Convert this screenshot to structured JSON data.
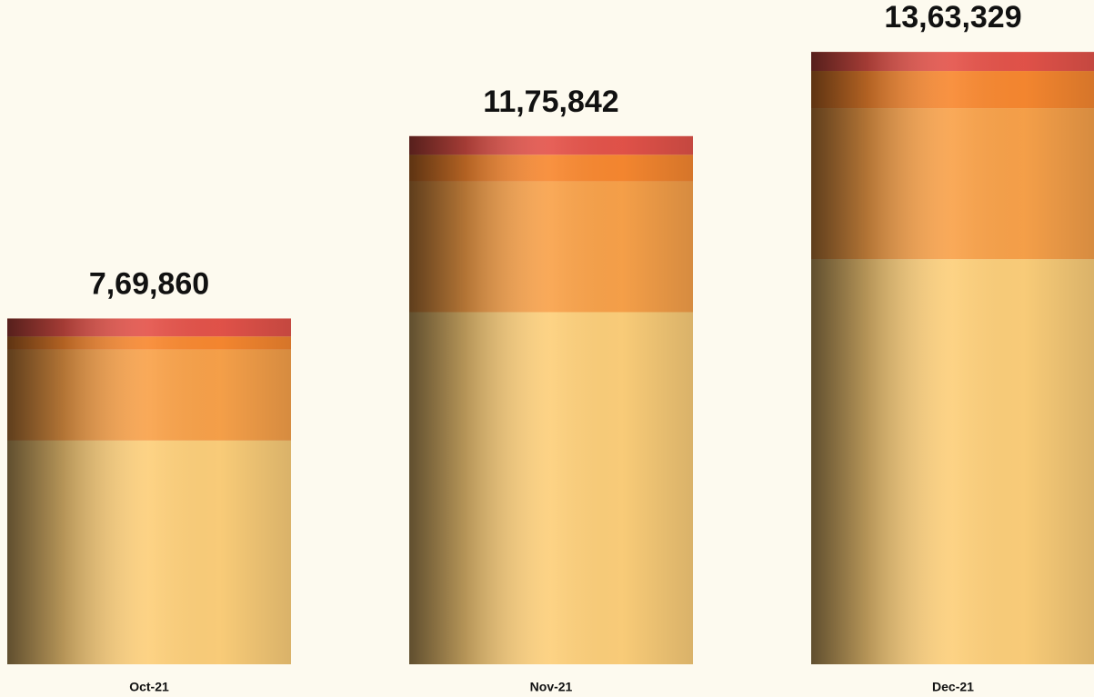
{
  "chart_data": {
    "type": "stacked-bar",
    "categories": [
      "Oct-21",
      "Nov-21",
      "Dec-21"
    ],
    "series": [
      {
        "color": "#fdcf7a",
        "values": [
          498100,
          784000,
          902000
        ]
      },
      {
        "color": "#f9a24a",
        "values": [
          202500,
          291000,
          336000
        ]
      },
      {
        "color": "#f88830",
        "values": [
          29250,
          59400,
          83000
        ]
      },
      {
        "color": "#e4534a",
        "values": [
          40010,
          41442,
          42329
        ]
      }
    ],
    "totals": [
      769860,
      1175842,
      1363329
    ],
    "total_labels": [
      "7,69,860",
      "11,75,842",
      "13,63,329"
    ],
    "ylim": [
      0,
      1400000
    ]
  }
}
